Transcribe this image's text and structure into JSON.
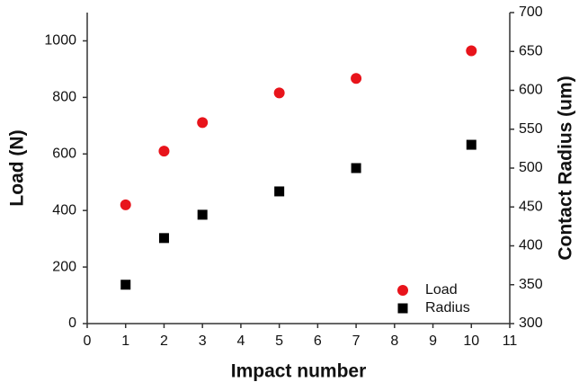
{
  "chart_data": {
    "type": "scatter",
    "xlabel": "Impact number",
    "ylabel": "Load (N)",
    "y2label": "Contact Radius (um)",
    "x": [
      1,
      2,
      3,
      5,
      7,
      10
    ],
    "series": [
      {
        "name": "Load",
        "color": "#e8141b",
        "marker": "circle",
        "values": [
          420,
          610,
          711,
          816,
          867,
          965
        ]
      },
      {
        "name": "Radius",
        "color": "#000000",
        "marker": "square",
        "axis": "y2",
        "values": [
          350,
          410,
          440,
          470,
          500,
          530
        ]
      }
    ],
    "xlim": [
      0,
      11
    ],
    "xticks": [
      0,
      1,
      2,
      3,
      4,
      5,
      6,
      7,
      8,
      9,
      10,
      11
    ],
    "ylim": [
      0,
      1100
    ],
    "yticks": [
      0,
      200,
      400,
      600,
      800,
      1000
    ],
    "y2lim": [
      300,
      700
    ],
    "y2ticks": [
      300,
      350,
      400,
      450,
      500,
      550,
      600,
      650,
      700
    ],
    "legend": "lower right"
  }
}
